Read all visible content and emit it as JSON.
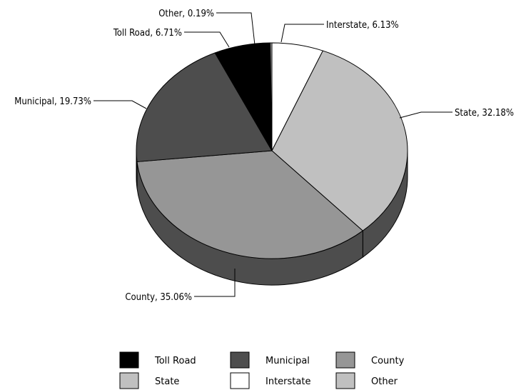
{
  "chart_data": {
    "type": "pie",
    "title": "",
    "slices": [
      {
        "label": "Interstate",
        "value": 6.13,
        "display": "Interstate, 6.13%",
        "color": "#ffffff"
      },
      {
        "label": "State",
        "value": 32.18,
        "display": "State, 32.18%",
        "color": "#c0c0c0"
      },
      {
        "label": "County",
        "value": 35.06,
        "display": "County, 35.06%",
        "color": "#969696"
      },
      {
        "label": "Municipal",
        "value": 19.73,
        "display": "Municipal, 19.73%",
        "color": "#4d4d4d"
      },
      {
        "label": "Toll Road",
        "value": 6.71,
        "display": "Toll Road, 6.71%",
        "color": "#000000"
      },
      {
        "label": "Other",
        "value": 0.19,
        "display": "Other, 0.19%",
        "color": "#c0c0c0"
      }
    ],
    "legend": {
      "placement": "bottom",
      "items": [
        {
          "label": "Toll Road",
          "color": "#000000"
        },
        {
          "label": "Municipal",
          "color": "#4d4d4d"
        },
        {
          "label": "County",
          "color": "#969696"
        },
        {
          "label": "State",
          "color": "#c0c0c0"
        },
        {
          "label": "Interstate",
          "color": "#ffffff"
        },
        {
          "label": "Other",
          "color": "#c0c0c0"
        }
      ]
    }
  }
}
